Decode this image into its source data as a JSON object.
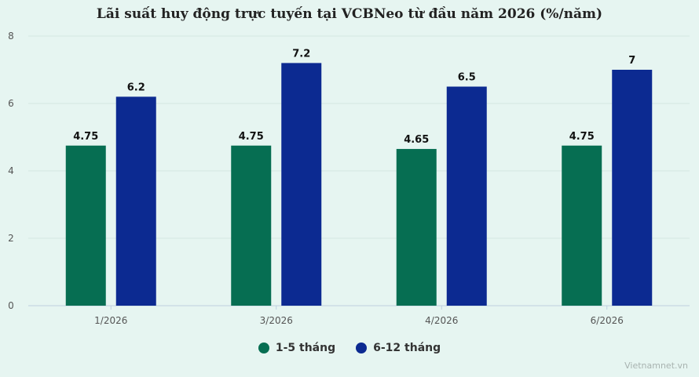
{
  "chart_data": {
    "type": "bar",
    "title": "Lãi suất huy động trực tuyến tại VCBNeo từ đầu năm 2026 (%/năm)",
    "categories": [
      "1/2026",
      "3/2026",
      "4/2026",
      "6/2026"
    ],
    "series": [
      {
        "name": "1-5 tháng",
        "values": [
          4.75,
          4.75,
          4.65,
          4.75
        ],
        "color": "#066e52"
      },
      {
        "name": "6-12 tháng",
        "values": [
          6.2,
          7.2,
          6.5,
          7
        ],
        "color": "#0c2a91"
      }
    ],
    "ylim": [
      0,
      8
    ],
    "yticks": [
      0,
      2,
      4,
      6,
      8
    ],
    "grid": true,
    "legend": "bottom",
    "xlabel": "",
    "ylabel": ""
  },
  "watermark": "Vietnamnet.vn"
}
